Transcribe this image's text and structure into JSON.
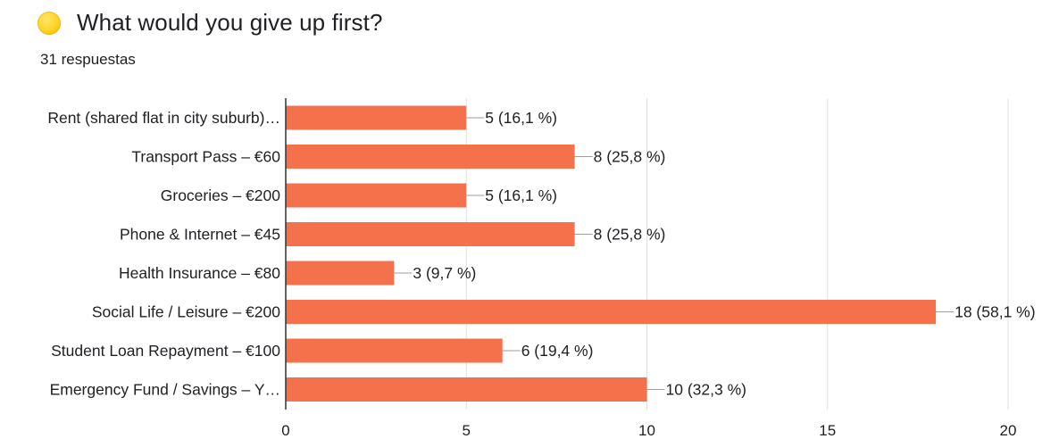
{
  "header": {
    "status_icon": "yellow-circle-icon",
    "title": "What would you give up first?",
    "subtitle": "31 respuestas"
  },
  "colors": {
    "bar": "#f4714b",
    "grid": "#e0e0e0",
    "axis": "#333333",
    "connector": "#9e9e9e"
  },
  "chart_data": {
    "type": "bar",
    "orientation": "horizontal",
    "categories": [
      "Rent (shared flat in city suburb)…",
      "Transport Pass – €60",
      "Groceries – €200",
      "Phone & Internet – €45",
      "Health Insurance – €80",
      "Social Life / Leisure – €200",
      "Student Loan Repayment – €100",
      "Emergency Fund / Savings – Y…"
    ],
    "values": [
      5,
      8,
      5,
      8,
      3,
      18,
      6,
      10
    ],
    "data_labels": [
      "5 (16,1 %)",
      "8 (25,8 %)",
      "5 (16,1 %)",
      "8 (25,8 %)",
      "3 (9,7 %)",
      "18 (58,1 %)",
      "6 (19,4 %)",
      "10 (32,3 %)"
    ],
    "xlim": [
      0,
      20
    ],
    "xticks": [
      0,
      5,
      10,
      15,
      20
    ],
    "grid": true
  }
}
